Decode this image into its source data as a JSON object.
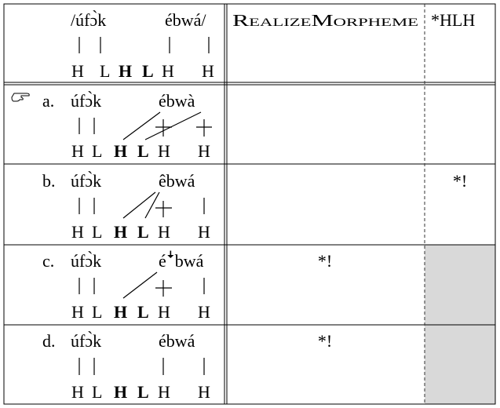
{
  "header": {
    "input_word1": "/úfɔ̀k",
    "input_word2": "ébwá/",
    "input_tones": [
      "H",
      "L",
      "H",
      "L",
      "H",
      "H"
    ],
    "constraint1": "RealizeMorpheme",
    "constraint2": "*HLH"
  },
  "pointer_glyph": "pointing-hand-icon",
  "candidates": [
    {
      "label": "a.",
      "word1": "úfɔ̀k",
      "word2": "ébwà",
      "tones": [
        "H",
        "L",
        "H",
        "L",
        "H",
        "H"
      ],
      "violation1": "",
      "violation2": "",
      "winner": true
    },
    {
      "label": "b.",
      "word1": "úfɔ̀k",
      "word2": "êbwá",
      "tones": [
        "H",
        "L",
        "H",
        "L",
        "H",
        "H"
      ],
      "violation1": "",
      "violation2": "*!",
      "winner": false
    },
    {
      "label": "c.",
      "word1": "úfɔ̀k",
      "word2": "éꜜbwá",
      "tones": [
        "H",
        "L",
        "H",
        "L",
        "H",
        "H"
      ],
      "violation1": "*!",
      "violation2": "",
      "winner": false
    },
    {
      "label": "d.",
      "word1": "úfɔ̀k",
      "word2": "ébwá",
      "tones": [
        "H",
        "L",
        "H",
        "L",
        "H",
        "H"
      ],
      "violation1": "*!",
      "violation2": "",
      "winner": false
    }
  ],
  "colors": {
    "border": "#000000",
    "shade": "#d9d9d9",
    "dash": "#333333"
  }
}
